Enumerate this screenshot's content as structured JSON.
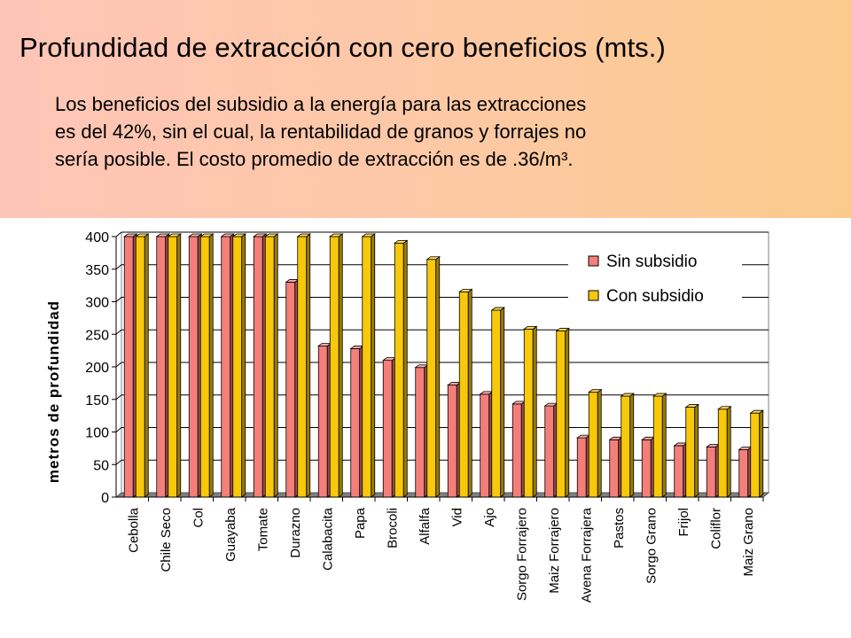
{
  "header": {
    "title": "Profundidad de extracción con cero beneficios (mts.)",
    "lines": [
      "Los beneficios del subsidio a la energía para las extracciones",
      "es del 42%, sin el cual, la rentabilidad de granos y forrajes no",
      "sería posible. El costo promedio de extracción es de .36/m³."
    ]
  },
  "colors": {
    "sin": "#f47f7a",
    "con": "#f8c80a",
    "bg_left": "#fec5b7",
    "bg_right": "#fcca8c"
  },
  "chart_data": {
    "type": "bar",
    "title": "",
    "xlabel": "",
    "ylabel": "metros de profundidad",
    "ylim": [
      0,
      400
    ],
    "yticks": [
      0,
      50,
      100,
      150,
      200,
      250,
      300,
      350,
      400
    ],
    "grid": true,
    "legend": "top-right",
    "categories": [
      "Cebolla",
      "Chile Seco",
      "Col",
      "Guayaba",
      "Tomate",
      "Durazno",
      "Calabacita",
      "Papa",
      "Brocoli",
      "Alfalfa",
      "Vid",
      "Ajo",
      "Sorgo Forrajero",
      "Maiz Forrajero",
      "Avena Forrajera",
      "Pastos",
      "Sorgo Grano",
      "Frijol",
      "Coliflor",
      "Maiz Grano"
    ],
    "series": [
      {
        "name": "Sin subsidio",
        "values": [
          400,
          400,
          400,
          400,
          400,
          330,
          232,
          228,
          210,
          199,
          172,
          158,
          143,
          140,
          91,
          88,
          88,
          79,
          77,
          73
        ]
      },
      {
        "name": "Con subsidio",
        "values": [
          400,
          400,
          400,
          400,
          400,
          400,
          400,
          400,
          390,
          365,
          315,
          287,
          258,
          255,
          161,
          155,
          155,
          138,
          135,
          129
        ]
      }
    ]
  }
}
